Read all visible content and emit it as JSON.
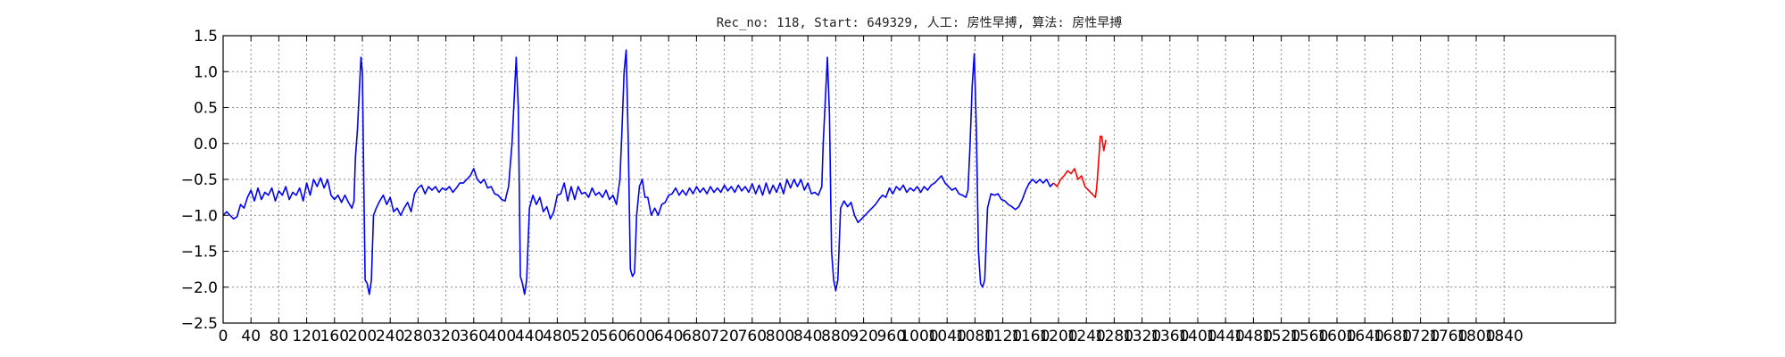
{
  "chart_data": {
    "type": "line",
    "title": "Rec_no: 118, Start: 649329, 人工: 房性早搏, 算法: 房性早搏",
    "xlabel": "",
    "ylabel": "",
    "xlim": [
      0,
      2000
    ],
    "ylim": [
      -2.5,
      1.5
    ],
    "x_ticks": [
      0,
      40,
      80,
      120,
      160,
      200,
      240,
      280,
      320,
      360,
      400,
      440,
      480,
      520,
      560,
      600,
      640,
      680,
      720,
      760,
      800,
      840,
      880,
      920,
      960,
      1000,
      1040,
      1080,
      1120,
      1160,
      1200,
      1240,
      1280,
      1320,
      1360,
      1400,
      1440,
      1480,
      1520,
      1560,
      1600,
      1640,
      1680,
      1720,
      1760,
      1800,
      1840
    ],
    "x_tick_labels": [
      "0",
      "40",
      "80",
      "120",
      "160",
      "200",
      "240",
      "280",
      "320",
      "360",
      "400",
      "440",
      "480",
      "520",
      "560",
      "600",
      "640",
      "680",
      "720",
      "760",
      "800",
      "840",
      "880",
      "920",
      "960",
      "1000",
      "1040",
      "1080",
      "1120",
      "1160",
      "1200",
      "1240",
      "1280",
      "1320",
      "1360",
      "1400",
      "1440",
      "1480",
      "1520",
      "1560",
      "1600",
      "1640",
      "1680",
      "1720",
      "1760",
      "1800",
      "1840"
    ],
    "y_ticks": [
      1.5,
      1.0,
      0.5,
      0.0,
      -0.5,
      -1.0,
      -1.5,
      -2.0,
      -2.5
    ],
    "y_tick_labels": [
      "1.5",
      "1.0",
      "0.5",
      "0.0",
      "−0.5",
      "−1.0",
      "−1.5",
      "−2.0",
      "−2.5"
    ],
    "grid": true,
    "colors": {
      "ecg": "#0000ff",
      "highlight": "#ff0000"
    },
    "highlight_range": [
      1195,
      1415
    ],
    "series": [
      {
        "points": [
          [
            0,
            -1.0
          ],
          [
            5,
            -0.95
          ],
          [
            10,
            -1.0
          ],
          [
            15,
            -1.05
          ],
          [
            20,
            -1.02
          ],
          [
            25,
            -0.85
          ],
          [
            30,
            -0.9
          ],
          [
            35,
            -0.75
          ],
          [
            40,
            -0.65
          ],
          [
            45,
            -0.8
          ],
          [
            50,
            -0.62
          ],
          [
            55,
            -0.78
          ],
          [
            60,
            -0.68
          ],
          [
            65,
            -0.72
          ],
          [
            70,
            -0.62
          ],
          [
            75,
            -0.8
          ],
          [
            80,
            -0.66
          ],
          [
            85,
            -0.72
          ],
          [
            90,
            -0.6
          ],
          [
            95,
            -0.78
          ],
          [
            100,
            -0.68
          ],
          [
            105,
            -0.72
          ],
          [
            110,
            -0.62
          ],
          [
            115,
            -0.8
          ],
          [
            120,
            -0.55
          ],
          [
            125,
            -0.72
          ],
          [
            130,
            -0.5
          ],
          [
            135,
            -0.6
          ],
          [
            140,
            -0.48
          ],
          [
            145,
            -0.62
          ],
          [
            150,
            -0.5
          ],
          [
            155,
            -0.72
          ],
          [
            160,
            -0.78
          ],
          [
            165,
            -0.72
          ],
          [
            170,
            -0.82
          ],
          [
            175,
            -0.72
          ],
          [
            180,
            -0.82
          ],
          [
            185,
            -0.9
          ],
          [
            188,
            -0.8
          ],
          [
            190,
            -0.2
          ],
          [
            193,
            0.2
          ],
          [
            196,
            0.8
          ],
          [
            198,
            1.2
          ],
          [
            200,
            1.0
          ],
          [
            202,
            -0.5
          ],
          [
            204,
            -1.9
          ],
          [
            207,
            -1.95
          ],
          [
            210,
            -2.1
          ],
          [
            213,
            -1.9
          ],
          [
            216,
            -1.0
          ],
          [
            220,
            -0.9
          ],
          [
            225,
            -0.8
          ],
          [
            230,
            -0.72
          ],
          [
            235,
            -0.85
          ],
          [
            240,
            -0.75
          ],
          [
            245,
            -0.95
          ],
          [
            250,
            -0.9
          ],
          [
            255,
            -1.0
          ],
          [
            260,
            -0.9
          ],
          [
            265,
            -0.82
          ],
          [
            270,
            -0.95
          ],
          [
            275,
            -0.7
          ],
          [
            280,
            -0.62
          ],
          [
            285,
            -0.58
          ],
          [
            290,
            -0.7
          ],
          [
            295,
            -0.6
          ],
          [
            300,
            -0.65
          ],
          [
            305,
            -0.6
          ],
          [
            310,
            -0.68
          ],
          [
            315,
            -0.62
          ],
          [
            320,
            -0.65
          ],
          [
            325,
            -0.6
          ],
          [
            330,
            -0.68
          ],
          [
            335,
            -0.62
          ],
          [
            340,
            -0.55
          ],
          [
            345,
            -0.55
          ],
          [
            350,
            -0.5
          ],
          [
            355,
            -0.45
          ],
          [
            360,
            -0.35
          ],
          [
            365,
            -0.5
          ],
          [
            370,
            -0.55
          ],
          [
            375,
            -0.5
          ],
          [
            380,
            -0.62
          ],
          [
            385,
            -0.6
          ],
          [
            390,
            -0.7
          ],
          [
            395,
            -0.72
          ],
          [
            400,
            -0.78
          ],
          [
            405,
            -0.8
          ],
          [
            410,
            -0.6
          ],
          [
            415,
            0.0
          ],
          [
            418,
            0.6
          ],
          [
            421,
            1.2
          ],
          [
            424,
            0.5
          ],
          [
            427,
            -1.85
          ],
          [
            430,
            -1.95
          ],
          [
            433,
            -2.1
          ],
          [
            436,
            -1.9
          ],
          [
            440,
            -0.9
          ],
          [
            445,
            -0.72
          ],
          [
            450,
            -0.85
          ],
          [
            455,
            -0.75
          ],
          [
            460,
            -0.95
          ],
          [
            465,
            -0.88
          ],
          [
            470,
            -1.05
          ],
          [
            475,
            -0.95
          ],
          [
            480,
            -0.72
          ],
          [
            485,
            -0.7
          ],
          [
            490,
            -0.55
          ],
          [
            495,
            -0.8
          ],
          [
            500,
            -0.6
          ],
          [
            505,
            -0.78
          ],
          [
            510,
            -0.6
          ],
          [
            515,
            -0.7
          ],
          [
            520,
            -0.68
          ],
          [
            525,
            -0.75
          ],
          [
            530,
            -0.62
          ],
          [
            535,
            -0.72
          ],
          [
            540,
            -0.68
          ],
          [
            545,
            -0.75
          ],
          [
            550,
            -0.65
          ],
          [
            555,
            -0.78
          ],
          [
            560,
            -0.72
          ],
          [
            565,
            -0.85
          ],
          [
            570,
            -0.5
          ],
          [
            573,
            0.2
          ],
          [
            576,
            1.0
          ],
          [
            579,
            1.3
          ],
          [
            582,
            0.0
          ],
          [
            585,
            -1.75
          ],
          [
            588,
            -1.85
          ],
          [
            591,
            -1.8
          ],
          [
            594,
            -1.0
          ],
          [
            598,
            -0.6
          ],
          [
            602,
            -0.5
          ],
          [
            606,
            -0.75
          ],
          [
            610,
            -0.75
          ],
          [
            615,
            -1.0
          ],
          [
            620,
            -0.9
          ],
          [
            625,
            -1.0
          ],
          [
            630,
            -0.85
          ],
          [
            635,
            -0.82
          ],
          [
            640,
            -0.72
          ],
          [
            645,
            -0.7
          ],
          [
            650,
            -0.62
          ],
          [
            655,
            -0.72
          ],
          [
            660,
            -0.65
          ],
          [
            665,
            -0.72
          ],
          [
            670,
            -0.62
          ],
          [
            675,
            -0.7
          ],
          [
            680,
            -0.6
          ],
          [
            685,
            -0.68
          ],
          [
            690,
            -0.62
          ],
          [
            695,
            -0.7
          ],
          [
            700,
            -0.6
          ],
          [
            705,
            -0.68
          ],
          [
            710,
            -0.62
          ],
          [
            715,
            -0.68
          ],
          [
            720,
            -0.58
          ],
          [
            725,
            -0.66
          ],
          [
            730,
            -0.6
          ],
          [
            735,
            -0.68
          ],
          [
            740,
            -0.58
          ],
          [
            745,
            -0.66
          ],
          [
            750,
            -0.6
          ],
          [
            755,
            -0.68
          ],
          [
            760,
            -0.56
          ],
          [
            765,
            -0.7
          ],
          [
            770,
            -0.58
          ],
          [
            775,
            -0.72
          ],
          [
            780,
            -0.55
          ],
          [
            785,
            -0.7
          ],
          [
            790,
            -0.58
          ],
          [
            795,
            -0.68
          ],
          [
            800,
            -0.55
          ],
          [
            805,
            -0.7
          ],
          [
            810,
            -0.5
          ],
          [
            815,
            -0.62
          ],
          [
            820,
            -0.5
          ],
          [
            825,
            -0.6
          ],
          [
            830,
            -0.5
          ],
          [
            835,
            -0.65
          ],
          [
            840,
            -0.55
          ],
          [
            845,
            -0.7
          ],
          [
            850,
            -0.68
          ],
          [
            855,
            -0.72
          ],
          [
            860,
            -0.6
          ],
          [
            862,
            0.0
          ],
          [
            865,
            0.6
          ],
          [
            868,
            1.2
          ],
          [
            871,
            0.4
          ],
          [
            874,
            -1.5
          ],
          [
            877,
            -1.9
          ],
          [
            880,
            -2.05
          ],
          [
            883,
            -1.9
          ],
          [
            887,
            -0.9
          ],
          [
            892,
            -0.8
          ],
          [
            897,
            -0.88
          ],
          [
            902,
            -0.82
          ],
          [
            907,
            -1.0
          ],
          [
            912,
            -1.1
          ],
          [
            917,
            -1.05
          ],
          [
            922,
            -1.0
          ],
          [
            927,
            -0.95
          ],
          [
            932,
            -0.9
          ],
          [
            937,
            -0.85
          ],
          [
            942,
            -0.78
          ],
          [
            947,
            -0.72
          ],
          [
            952,
            -0.75
          ],
          [
            957,
            -0.62
          ],
          [
            962,
            -0.7
          ],
          [
            967,
            -0.6
          ],
          [
            972,
            -0.65
          ],
          [
            977,
            -0.58
          ],
          [
            982,
            -0.68
          ],
          [
            987,
            -0.62
          ],
          [
            992,
            -0.66
          ],
          [
            997,
            -0.6
          ],
          [
            1002,
            -0.68
          ],
          [
            1007,
            -0.6
          ],
          [
            1012,
            -0.65
          ],
          [
            1017,
            -0.58
          ],
          [
            1022,
            -0.55
          ],
          [
            1027,
            -0.5
          ],
          [
            1032,
            -0.45
          ],
          [
            1037,
            -0.55
          ],
          [
            1042,
            -0.6
          ],
          [
            1047,
            -0.65
          ],
          [
            1052,
            -0.62
          ],
          [
            1057,
            -0.7
          ],
          [
            1062,
            -0.72
          ],
          [
            1067,
            -0.75
          ],
          [
            1070,
            -0.65
          ],
          [
            1073,
            0.0
          ],
          [
            1076,
            0.8
          ],
          [
            1079,
            1.25
          ],
          [
            1082,
            0.2
          ],
          [
            1085,
            -1.5
          ],
          [
            1088,
            -1.95
          ],
          [
            1091,
            -2.0
          ],
          [
            1094,
            -1.9
          ],
          [
            1098,
            -0.9
          ],
          [
            1103,
            -0.7
          ],
          [
            1108,
            -0.72
          ],
          [
            1113,
            -0.7
          ],
          [
            1118,
            -0.78
          ],
          [
            1123,
            -0.8
          ],
          [
            1128,
            -0.85
          ],
          [
            1133,
            -0.88
          ],
          [
            1138,
            -0.92
          ],
          [
            1143,
            -0.88
          ],
          [
            1148,
            -0.78
          ],
          [
            1153,
            -0.65
          ],
          [
            1158,
            -0.55
          ],
          [
            1163,
            -0.5
          ],
          [
            1168,
            -0.55
          ],
          [
            1173,
            -0.5
          ],
          [
            1178,
            -0.55
          ],
          [
            1183,
            -0.5
          ],
          [
            1188,
            -0.6
          ],
          [
            1193,
            -0.55
          ],
          [
            1198,
            -0.6
          ],
          [
            1203,
            -0.5
          ],
          [
            1208,
            -0.45
          ],
          [
            1213,
            -0.38
          ],
          [
            1218,
            -0.42
          ],
          [
            1223,
            -0.35
          ],
          [
            1228,
            -0.5
          ],
          [
            1233,
            -0.45
          ],
          [
            1238,
            -0.6
          ],
          [
            1243,
            -0.65
          ],
          [
            1248,
            -0.7
          ],
          [
            1253,
            -0.75
          ],
          [
            1255,
            -0.6
          ],
          [
            1258,
            -0.2
          ],
          [
            1260,
            0.1
          ],
          [
            1262,
            0.1
          ],
          [
            1265,
            -0.1
          ],
          [
            1268,
            0.05
          ]
        ]
      }
    ]
  }
}
